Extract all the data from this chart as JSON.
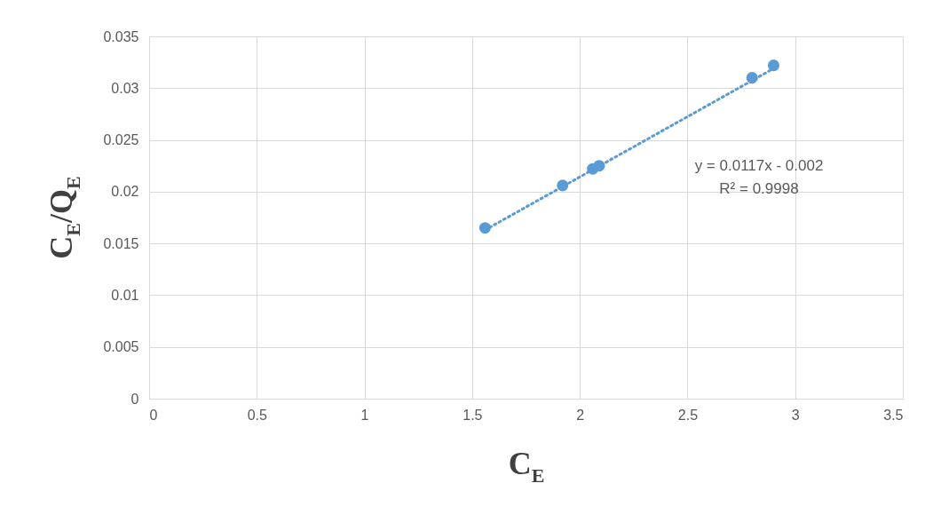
{
  "chart_data": {
    "type": "scatter",
    "xlabel": "C$_{E}$",
    "ylabel": "C$_{E}$/Q$_{E}$",
    "xlim": [
      0,
      3.5
    ],
    "xticks": [
      0,
      0.5,
      1,
      1.5,
      2,
      2.5,
      3,
      3.5
    ],
    "ylim": [
      0,
      0.035
    ],
    "yticks": [
      0,
      0.005,
      0.01,
      0.015,
      0.02,
      0.025,
      0.03,
      0.035
    ],
    "grid": true,
    "marker": "circle",
    "series": [
      {
        "color": "#5b9bd5",
        "x": [
          1.56,
          1.92,
          2.06,
          2.09,
          2.8,
          2.9
        ],
        "values": [
          0.0165,
          0.0206,
          0.0222,
          0.0225,
          0.031,
          0.0322
        ]
      },
      {
        "type": "line",
        "color": "#5b9bd5",
        "line_style": "dotted",
        "marker": "none",
        "x": [
          1.56,
          2.9
        ],
        "values": [
          0.0163,
          0.0319
        ]
      }
    ],
    "annotations": [
      "y = 0.0117x - 0.002",
      "R² = 0.9998"
    ]
  }
}
